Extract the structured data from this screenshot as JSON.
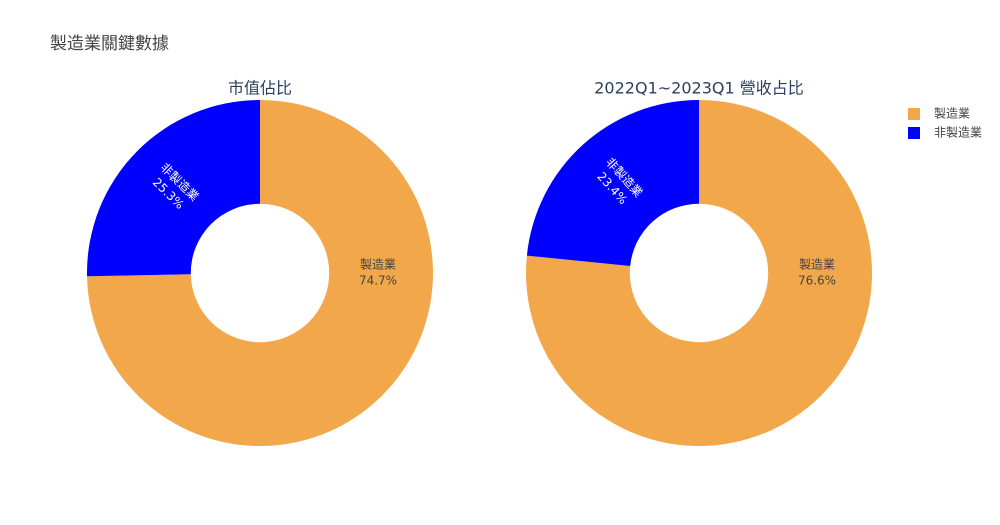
{
  "title": "製造業關鍵數據",
  "chart_data": [
    {
      "type": "pie",
      "title": "市值佔比",
      "categories": [
        "製造業",
        "非製造業"
      ],
      "values": [
        74.7,
        25.3
      ],
      "value_labels": [
        "74.7%",
        "25.3%"
      ],
      "colors": [
        "#f2a74a",
        "#0000ff"
      ],
      "hole": 0.4
    },
    {
      "type": "pie",
      "title": "2022Q1~2023Q1 營收占比",
      "categories": [
        "製造業",
        "非製造業"
      ],
      "values": [
        76.6,
        23.4
      ],
      "value_labels": [
        "76.6%",
        "23.4%"
      ],
      "colors": [
        "#f2a74a",
        "#0000ff"
      ],
      "hole": 0.4
    }
  ]
}
